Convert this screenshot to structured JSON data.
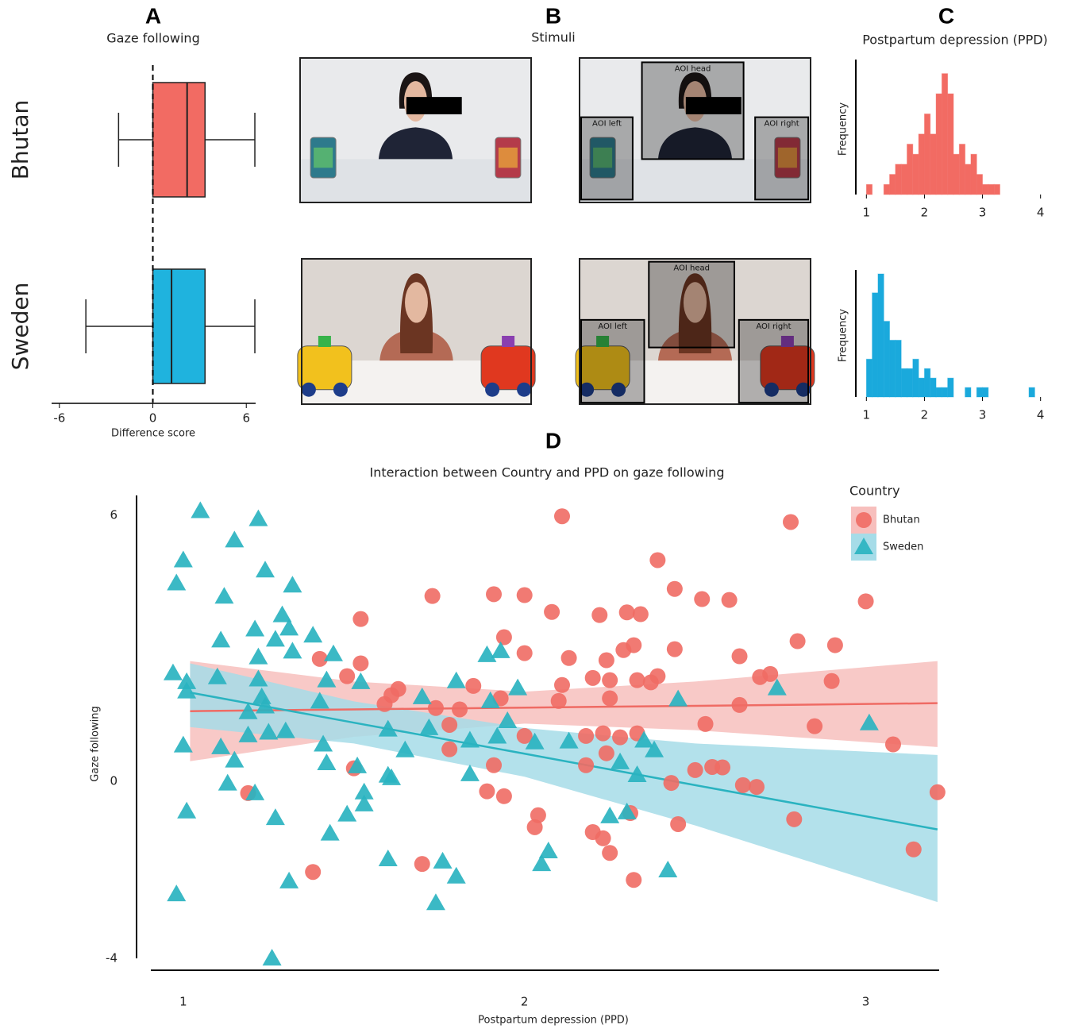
{
  "stimuli": {
    "panel": "B",
    "title": "Stimuli",
    "aoi": {
      "head": "AOI head",
      "left": "AOI left",
      "right": "AOI right"
    }
  },
  "chart_data": [
    {
      "type": "box",
      "panel": "A",
      "title": "Gaze following",
      "xlabel": "Difference score",
      "categories": [
        "Bhutan",
        "Sweden"
      ],
      "boxes": [
        {
          "min": -2.2,
          "q1": 0,
          "median": 2.2,
          "q3": 3.35,
          "max": 6.55,
          "color": "#f26b63"
        },
        {
          "min": -4.3,
          "q1": 0,
          "median": 1.2,
          "q3": 3.35,
          "max": 6.55,
          "color": "#1fb3de"
        }
      ],
      "xlim": [
        -6.5,
        6.6
      ],
      "xticks": [
        -6,
        0,
        6
      ],
      "reference_line": 0
    },
    {
      "type": "histogram",
      "panel": "C",
      "title": "Postpartum depression (PPD)",
      "ylabel": "Frequency",
      "color": "#f26b63",
      "bins": [
        1,
        1.1,
        1.2,
        1.3,
        1.4,
        1.5,
        1.6,
        1.7,
        1.8,
        1.9,
        2,
        2.1,
        2.2,
        2.3,
        2.4,
        2.5,
        2.6,
        2.7,
        2.8,
        2.9,
        3,
        3.1,
        3.2,
        3.3
      ],
      "counts": [
        1,
        0,
        0,
        1,
        2,
        3,
        3,
        5,
        4,
        6,
        8,
        6,
        10,
        12,
        10,
        4,
        5,
        3,
        4,
        2,
        1,
        1,
        1
      ],
      "xlim": [
        0.9,
        4.1
      ],
      "xticks": [
        1,
        2,
        3,
        4
      ],
      "ylim": [
        0,
        13
      ]
    },
    {
      "type": "histogram",
      "ylabel": "Frequency",
      "color": "#1aa9dc",
      "bins": [
        1,
        1.1,
        1.2,
        1.3,
        1.4,
        1.5,
        1.6,
        1.7,
        1.8,
        1.9,
        2,
        2.1,
        2.2,
        2.3,
        2.4,
        2.5,
        2.6,
        2.7,
        2.8,
        2.9,
        3,
        3.1,
        3.2,
        3.3,
        3.4,
        3.5,
        3.6,
        3.7,
        3.8,
        3.9
      ],
      "counts": [
        4,
        11,
        13,
        8,
        6,
        6,
        3,
        3,
        4,
        2,
        3,
        2,
        1,
        1,
        2,
        0,
        0,
        1,
        0,
        1,
        1,
        0,
        0,
        0,
        0,
        0,
        0,
        0,
        1
      ],
      "xlim": [
        0.9,
        4.1
      ],
      "xticks": [
        1,
        2,
        3,
        4
      ],
      "ylim": [
        0,
        13
      ]
    },
    {
      "type": "scatter",
      "panel": "D",
      "title": "Interaction between Country and PPD on gaze following",
      "xlabel": "Postpartum depression (PPD)",
      "ylabel": "Gaze following",
      "legend_title": "Country",
      "legend": "right",
      "xlim": [
        0.905,
        3.215
      ],
      "xticks": [
        1,
        2,
        3
      ],
      "ylim": [
        -4,
        6.45
      ],
      "yticks": [
        6,
        0,
        -4
      ],
      "series": [
        {
          "name": "Bhutan",
          "color": "#ef6b64",
          "band_color": "#f7bfbd",
          "marker": "circle",
          "x": [
            2.11,
            2.78,
            2.39,
            2.44,
            2.52,
            2.6,
            3.0,
            1.73,
            1.91,
            2.0,
            2.08,
            2.22,
            2.3,
            2.34,
            1.52,
            1.94,
            2.8,
            2.91,
            2.32,
            2.29,
            2.44,
            2.0,
            2.13,
            2.24,
            2.63,
            1.4,
            1.48,
            1.52,
            2.72,
            2.69,
            2.2,
            2.25,
            2.33,
            2.39,
            2.37,
            2.9,
            1.85,
            2.11,
            1.63,
            1.61,
            1.59,
            1.93,
            2.1,
            2.25,
            1.74,
            2.63,
            1.81,
            2.53,
            2.85,
            1.78,
            2.23,
            2.18,
            2.28,
            2.33,
            2.0,
            3.08,
            1.78,
            2.24,
            1.91,
            2.18,
            2.5,
            2.55,
            2.58,
            1.5,
            2.43,
            2.64,
            2.68,
            3.21,
            1.89,
            1.94,
            1.19,
            2.04,
            2.03,
            2.45,
            2.79,
            2.31,
            2.2,
            2.23,
            2.25,
            3.14,
            1.7,
            1.38,
            2.32
          ],
          "values": [
            5.98,
            5.85,
            4.99,
            4.34,
            4.11,
            4.09,
            4.06,
            4.18,
            4.22,
            4.2,
            3.82,
            3.75,
            3.81,
            3.77,
            3.66,
            3.25,
            3.16,
            3.07,
            3.07,
            2.96,
            2.98,
            2.89,
            2.78,
            2.73,
            2.82,
            2.76,
            2.37,
            2.66,
            2.42,
            2.35,
            2.33,
            2.28,
            2.28,
            2.37,
            2.23,
            2.26,
            2.15,
            2.17,
            2.08,
            1.94,
            1.74,
            1.87,
            1.81,
            1.87,
            1.65,
            1.72,
            1.62,
            1.29,
            1.24,
            1.27,
            1.08,
            1.02,
            0.99,
            1.08,
            1.02,
            0.83,
            0.72,
            0.63,
            0.36,
            0.36,
            0.25,
            0.32,
            0.31,
            0.29,
            -0.04,
            -0.09,
            -0.13,
            -0.25,
            -0.23,
            -0.34,
            -0.27,
            -0.77,
            -1.04,
            -0.97,
            -0.86,
            -0.72,
            -1.15,
            -1.29,
            -1.62,
            -1.54,
            -1.87,
            -2.05,
            -2.23
          ],
          "fit": {
            "x": [
              1.02,
              1.5,
              2.0,
              2.5,
              3.21
            ],
            "values": [
              1.58,
              1.62,
              1.66,
              1.7,
              1.76
            ],
            "lower": [
              0.45,
              1.0,
              1.3,
              1.15,
              0.77
            ],
            "upper": [
              2.71,
              2.25,
              2.02,
              2.25,
              2.71
            ]
          }
        },
        {
          "name": "Sweden",
          "color": "#2ab3c0",
          "band_color": "#a6dce8",
          "marker": "triangle",
          "x": [
            1.05,
            1.22,
            1.0,
            1.15,
            1.24,
            0.98,
            1.12,
            1.32,
            1.29,
            1.21,
            1.31,
            1.38,
            1.11,
            1.27,
            1.32,
            1.22,
            1.44,
            1.89,
            1.93,
            0.97,
            1.01,
            1.01,
            1.1,
            1.22,
            1.42,
            1.52,
            1.8,
            1.98,
            1.23,
            1.4,
            1.7,
            1.9,
            2.45,
            2.74,
            1.24,
            1.19,
            3.01,
            1.3,
            1.25,
            1.19,
            1.6,
            1.72,
            1.95,
            1.92,
            1.84,
            2.03,
            2.13,
            2.35,
            1.0,
            1.11,
            1.41,
            1.65,
            2.38,
            1.15,
            1.42,
            1.51,
            2.28,
            1.6,
            1.61,
            1.84,
            2.33,
            1.13,
            1.21,
            1.53,
            1.53,
            1.48,
            1.01,
            1.27,
            2.25,
            2.3,
            1.43,
            2.07,
            1.6,
            1.76,
            2.05,
            1.8,
            2.42,
            1.31,
            0.98,
            1.74,
            1.26
          ],
          "values": [
            6.1,
            5.92,
            4.99,
            5.44,
            4.76,
            4.47,
            4.17,
            4.42,
            3.75,
            3.43,
            3.45,
            3.29,
            3.18,
            3.2,
            2.93,
            2.8,
            2.87,
            2.85,
            2.94,
            2.44,
            2.24,
            2.03,
            2.35,
            2.3,
            2.28,
            2.24,
            2.26,
            2.1,
            1.9,
            1.8,
            1.9,
            1.81,
            1.85,
            2.1,
            1.69,
            1.56,
            1.31,
            1.13,
            1.1,
            1.04,
            1.17,
            1.2,
            1.36,
            1.01,
            0.92,
            0.88,
            0.9,
            0.92,
            0.81,
            0.77,
            0.83,
            0.7,
            0.7,
            0.47,
            0.41,
            0.34,
            0.43,
            0.13,
            0.07,
            0.16,
            0.14,
            -0.05,
            -0.27,
            -0.25,
            -0.52,
            -0.75,
            -0.68,
            -0.83,
            -0.79,
            -0.7,
            -1.18,
            -1.58,
            -1.76,
            -1.81,
            -1.87,
            -2.15,
            -2.01,
            -2.26,
            -2.55,
            -2.75,
            -4.0
          ],
          "fit": {
            "x": [
              1.02,
              1.5,
              2.0,
              2.5,
              3.21
            ],
            "values": [
              2.0,
              1.32,
              0.62,
              -0.09,
              -1.09
            ],
            "lower": [
              1.22,
              0.85,
              0.1,
              -1.0,
              -2.73
            ],
            "upper": [
              2.66,
              1.8,
              1.2,
              0.85,
              0.59
            ]
          }
        }
      ]
    }
  ]
}
